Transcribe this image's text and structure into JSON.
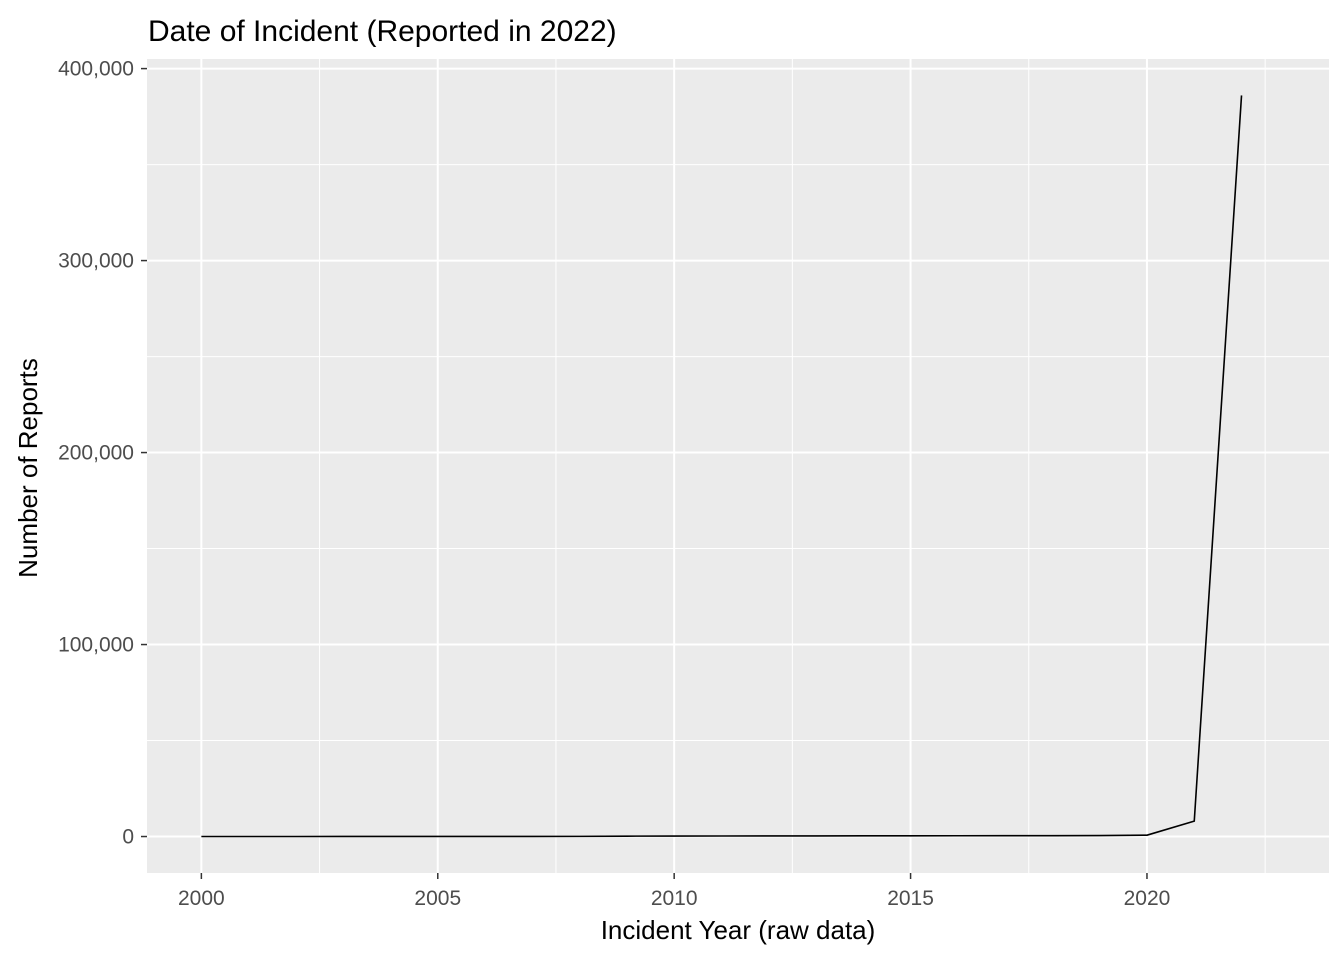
{
  "chart_data": {
    "type": "line",
    "title": "Date of Incident (Reported in 2022)",
    "xlabel": "Incident Year (raw data)",
    "ylabel": "Number of Reports",
    "xlim": [
      1998.85,
      2023.85
    ],
    "ylim": [
      -19000,
      405000
    ],
    "x_ticks": [
      2000,
      2005,
      2010,
      2015,
      2020
    ],
    "x_tick_labels": [
      "2000",
      "2005",
      "2010",
      "2015",
      "2020"
    ],
    "y_ticks": [
      0,
      100000,
      200000,
      300000,
      400000
    ],
    "y_tick_labels": [
      "0",
      "100,000",
      "200,000",
      "300,000",
      "400,000"
    ],
    "grid": true,
    "background": "#ebebeb",
    "grid_color": "#ffffff",
    "line_color": "#000000",
    "series": [
      {
        "x": [
          2000,
          2001,
          2002,
          2003,
          2004,
          2005,
          2006,
          2007,
          2008,
          2009,
          2010,
          2011,
          2012,
          2013,
          2014,
          2015,
          2016,
          2017,
          2018,
          2019,
          2020,
          2021,
          2022
        ],
        "y": [
          20,
          20,
          20,
          30,
          30,
          40,
          40,
          60,
          80,
          200,
          250,
          280,
          300,
          320,
          350,
          380,
          400,
          420,
          450,
          500,
          700,
          8000,
          386000
        ]
      }
    ]
  }
}
